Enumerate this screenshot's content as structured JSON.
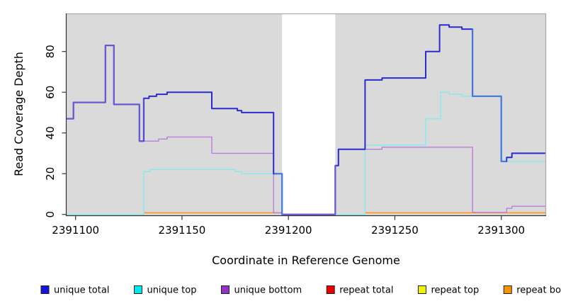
{
  "figure": {
    "background": "#FFFFFF"
  },
  "chart_data": {
    "type": "line",
    "subtype": "step",
    "title": "",
    "xlabel": "Coordinate in Reference Genome",
    "ylabel": "Read Coverage Depth",
    "xlim": [
      2391095,
      2391321
    ],
    "ylim": [
      0,
      98
    ],
    "x_ticks": [
      "2391100",
      "2391150",
      "2391200",
      "2391250",
      "2391300"
    ],
    "x_tick_values": [
      2391100,
      2391150,
      2391200,
      2391250,
      2391300
    ],
    "y_ticks": [
      "0",
      "20",
      "40",
      "60",
      "80"
    ],
    "y_tick_values": [
      0,
      20,
      40,
      60,
      80
    ],
    "grid": false,
    "plot_bg": "#DADADA",
    "gap_band": {
      "from": 2391197,
      "to": 2391222,
      "color": "#FFFFFF"
    },
    "x_end": 2391321,
    "series": [
      {
        "name": "repeat top",
        "line_color": "#9FD79C",
        "width": 1.5,
        "segments": [
          {
            "from": 2391095.5,
            "to": 2391132,
            "value": 0
          },
          {
            "from": 2391222,
            "to": 2391236,
            "value": 0
          }
        ]
      },
      {
        "name": "repeat bottom",
        "line_color": "#FF9822",
        "width": 1.7,
        "segments": [
          {
            "from": 2391132,
            "to": 2391197,
            "value": 0.8
          },
          {
            "from": 2391236,
            "to": 2391321,
            "value": 0.8
          }
        ]
      },
      {
        "name": "unique bottom",
        "line_color": "#BA7EDC",
        "width": 1.4,
        "points": [
          [
            2391095.5,
            47
          ],
          [
            2391099,
            55
          ],
          [
            2391114,
            83
          ],
          [
            2391118,
            54
          ],
          [
            2391130,
            36
          ],
          [
            2391139,
            37
          ],
          [
            2391143,
            38
          ],
          [
            2391164,
            30
          ],
          [
            2391193,
            0.8
          ],
          [
            2391197,
            0
          ],
          [
            2391222,
            24
          ],
          [
            2391223.5,
            32
          ],
          [
            2391244,
            33
          ],
          [
            2391286.5,
            1
          ],
          [
            2391302.5,
            3
          ],
          [
            2391305,
            4
          ]
        ]
      },
      {
        "name": "unique top",
        "line_color": "#8BE9EE",
        "width": 1.5,
        "points": [
          [
            2391095.5,
            0
          ],
          [
            2391132,
            21
          ],
          [
            2391135,
            22
          ],
          [
            2391175,
            21
          ],
          [
            2391178,
            20
          ],
          [
            2391197,
            0
          ],
          [
            2391236,
            34
          ],
          [
            2391264.5,
            47
          ],
          [
            2391271.5,
            60
          ],
          [
            2391275.5,
            59
          ],
          [
            2391281.5,
            58
          ],
          [
            2391300,
            26
          ]
        ]
      },
      {
        "name": "unique total",
        "line_color": "#2B2BD2",
        "width": 2,
        "points": [
          [
            2391095.5,
            47
          ],
          [
            2391099,
            55
          ],
          [
            2391114,
            83
          ],
          [
            2391118,
            54
          ],
          [
            2391130,
            36
          ],
          [
            2391132,
            57
          ],
          [
            2391134.5,
            58
          ],
          [
            2391138,
            59
          ],
          [
            2391143,
            60
          ],
          [
            2391164,
            52
          ],
          [
            2391176,
            51
          ],
          [
            2391178,
            50
          ],
          [
            2391193,
            20
          ],
          [
            2391197,
            0
          ],
          [
            2391222,
            24
          ],
          [
            2391223.5,
            32
          ],
          [
            2391236,
            66
          ],
          [
            2391244,
            67
          ],
          [
            2391264.5,
            80
          ],
          [
            2391271,
            93
          ],
          [
            2391275.5,
            92
          ],
          [
            2391281.5,
            91
          ],
          [
            2391286.5,
            58
          ],
          [
            2391300,
            26
          ],
          [
            2391302.5,
            28
          ],
          [
            2391305,
            30
          ]
        ]
      }
    ],
    "blend_overlays": [
      {
        "series": "unique total",
        "color": "#6A5ACD",
        "ranges": [
          [
            2391090,
            2391132
          ],
          [
            2391197.6,
            2391222.4
          ]
        ]
      },
      {
        "series": "unique total",
        "color": "#4080E8",
        "ranges": [
          [
            2391193.4,
            2391197.6
          ],
          [
            2391286.3,
            2391302.4
          ]
        ]
      }
    ],
    "legend": {
      "position": "bottom",
      "entries": [
        {
          "label": "unique total",
          "swatch_color": "#1414DC"
        },
        {
          "label": "unique top",
          "swatch_color": "#00E8F0"
        },
        {
          "label": "unique bottom",
          "swatch_color": "#9232CC"
        },
        {
          "label": "repeat total",
          "swatch_color": "#E60000"
        },
        {
          "label": "repeat top",
          "swatch_color": "#F2F200"
        },
        {
          "label": "repeat bottom",
          "swatch_color": "#F59300"
        }
      ]
    }
  }
}
